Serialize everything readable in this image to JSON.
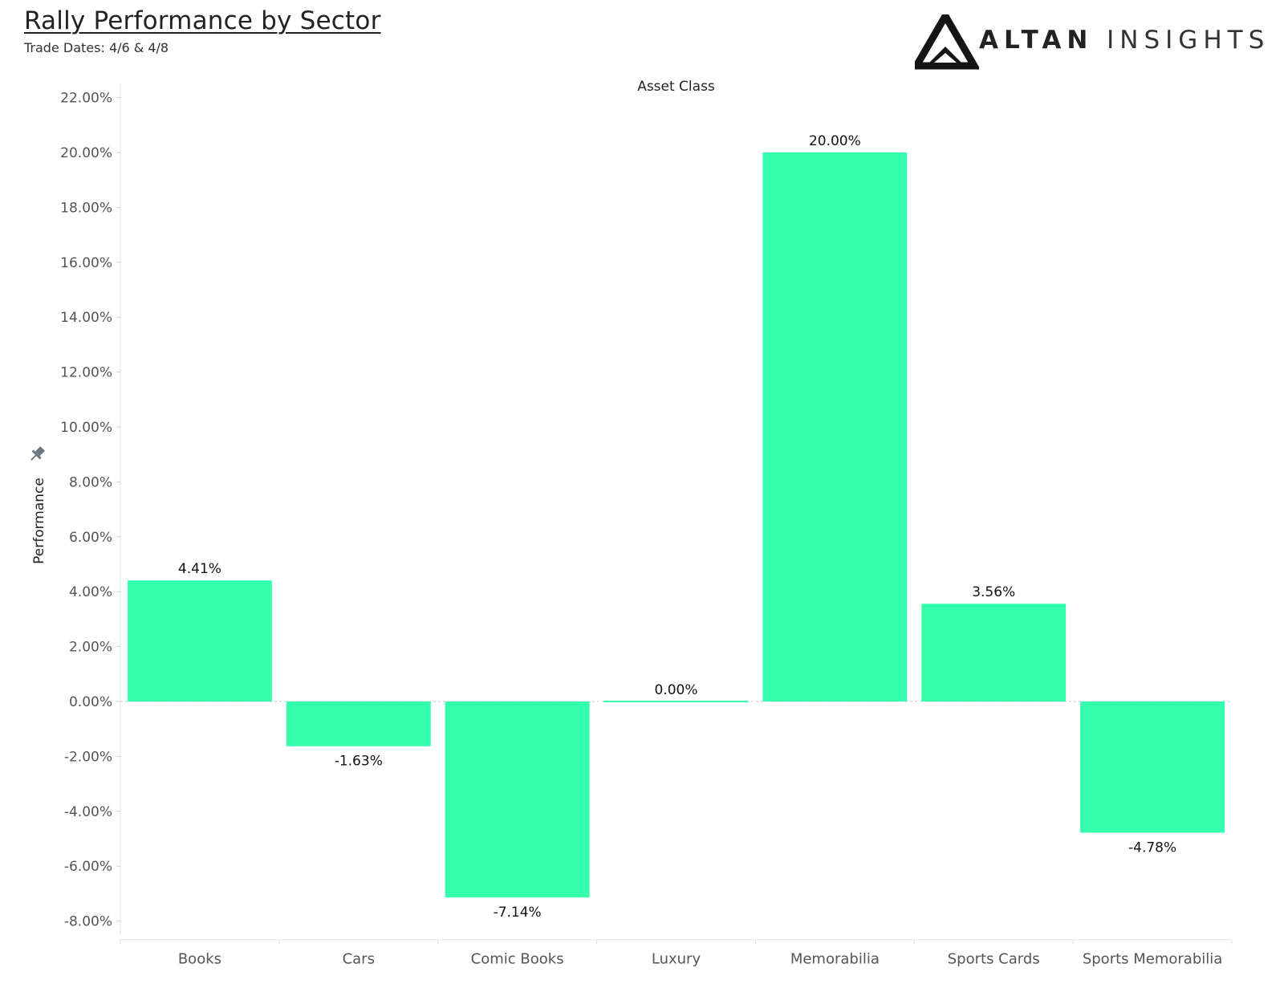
{
  "header": {
    "title": "Rally Performance by Sector",
    "subtitle": "Trade Dates: 4/6 & 4/8"
  },
  "logo": {
    "word1": "ALTAN",
    "word2": "INSIGHTS",
    "icon": "altan-triangle-logo-icon"
  },
  "chart_data": {
    "type": "bar",
    "xlabel": "Asset Class",
    "ylabel": "Performance",
    "categories": [
      "Books",
      "Cars",
      "Comic Books",
      "Luxury",
      "Memorabilia",
      "Sports Cards",
      "Sports Memorabilia"
    ],
    "values": [
      4.41,
      -1.63,
      -7.14,
      0.0,
      20.0,
      3.56,
      -4.78
    ],
    "data_labels": [
      "4.41%",
      "-1.63%",
      "-7.14%",
      "0.00%",
      "20.00%",
      "3.56%",
      "-4.78%"
    ],
    "yticks": [
      22,
      20,
      18,
      16,
      14,
      12,
      10,
      8,
      6,
      4,
      2,
      0,
      -2,
      -4,
      -6,
      -8
    ],
    "ytick_labels": [
      "22.00%",
      "20.00%",
      "18.00%",
      "16.00%",
      "14.00%",
      "12.00%",
      "10.00%",
      "8.00%",
      "6.00%",
      "4.00%",
      "2.00%",
      "0.00%",
      "-2.00%",
      "-4.00%",
      "-6.00%",
      "-8.00%"
    ],
    "ylim": [
      -8.5,
      22.5
    ],
    "grid": false,
    "legend": "none",
    "bar_color": "#33ffad",
    "pin_icon": "pin-icon"
  }
}
